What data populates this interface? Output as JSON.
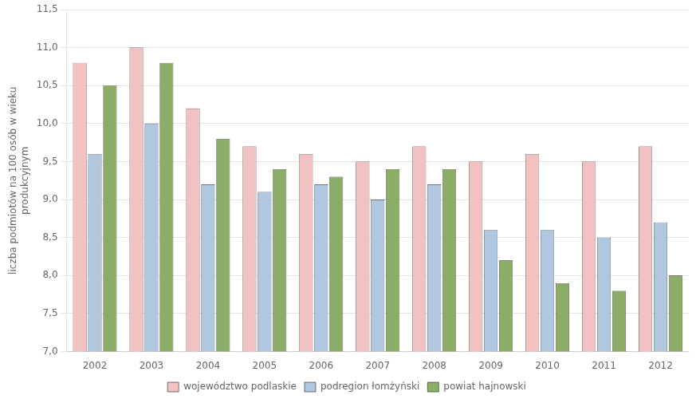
{
  "chart_data": {
    "type": "bar",
    "categories": [
      "2002",
      "2003",
      "2004",
      "2005",
      "2006",
      "2007",
      "2008",
      "2009",
      "2010",
      "2011",
      "2012"
    ],
    "series": [
      {
        "name": "województwo podlaskie",
        "color": "#F2C2C2",
        "values": [
          10.8,
          11.0,
          10.2,
          9.7,
          9.6,
          9.5,
          9.7,
          9.5,
          9.6,
          9.5,
          9.7
        ]
      },
      {
        "name": "podregion łomżyński",
        "color": "#AFC8E0",
        "values": [
          9.6,
          10.0,
          9.2,
          9.1,
          9.2,
          9.0,
          9.2,
          8.6,
          8.6,
          8.5,
          8.7
        ]
      },
      {
        "name": "powiat hajnowski",
        "color": "#8CAD68",
        "values": [
          10.5,
          10.8,
          9.8,
          9.4,
          9.3,
          9.4,
          9.4,
          8.2,
          7.9,
          7.8,
          8.0
        ]
      }
    ],
    "ylabel": "liczba podmiotów na 100 osób w wieku\nprodukcyjnym",
    "ylim": [
      7.0,
      11.5
    ],
    "yticks": [
      {
        "value": 7.0,
        "label": "7,0"
      },
      {
        "value": 7.5,
        "label": "7,5"
      },
      {
        "value": 8.0,
        "label": "8,0"
      },
      {
        "value": 8.5,
        "label": "8,5"
      },
      {
        "value": 9.0,
        "label": "9,0"
      },
      {
        "value": 9.5,
        "label": "9,5"
      },
      {
        "value": 10.0,
        "label": "10,0"
      },
      {
        "value": 10.5,
        "label": "10,5"
      },
      {
        "value": 11.0,
        "label": "11,0"
      },
      {
        "value": 11.5,
        "label": "11,5"
      }
    ],
    "grid": true,
    "legend": "bottom"
  }
}
